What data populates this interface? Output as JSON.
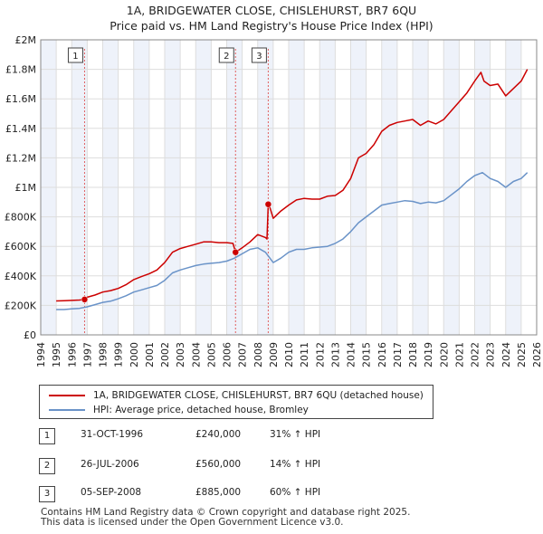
{
  "title_line1": "1A, BRIDGEWATER CLOSE, CHISLEHURST, BR7 6QU",
  "title_line2": "Price paid vs. HM Land Registry's House Price Index (HPI)",
  "colors": {
    "property": "#cc0000",
    "hpi": "#6a93c8",
    "grid": "#dddddd",
    "band": "#eef2fa",
    "marker_line": "#e06060"
  },
  "chart_data": {
    "type": "line",
    "title": "Price paid vs. HM Land Registry's House Price Index (HPI)",
    "xlim": [
      1994,
      2026
    ],
    "ylim": [
      0,
      2000000
    ],
    "x_ticks": [
      "1994",
      "1995",
      "1996",
      "1997",
      "1998",
      "1999",
      "2000",
      "2001",
      "2002",
      "2003",
      "2004",
      "2005",
      "2006",
      "2007",
      "2008",
      "2009",
      "2010",
      "2011",
      "2012",
      "2013",
      "2014",
      "2015",
      "2016",
      "2017",
      "2018",
      "2019",
      "2020",
      "2021",
      "2022",
      "2023",
      "2024",
      "2025",
      "2026"
    ],
    "y_ticks": [
      {
        "value": 0,
        "label": "£0"
      },
      {
        "value": 200000,
        "label": "£200K"
      },
      {
        "value": 400000,
        "label": "£400K"
      },
      {
        "value": 600000,
        "label": "£600K"
      },
      {
        "value": 800000,
        "label": "£800K"
      },
      {
        "value": 1000000,
        "label": "£1M"
      },
      {
        "value": 1200000,
        "label": "£1.2M"
      },
      {
        "value": 1400000,
        "label": "£1.4M"
      },
      {
        "value": 1600000,
        "label": "£1.6M"
      },
      {
        "value": 1800000,
        "label": "£1.8M"
      },
      {
        "value": 2000000,
        "label": "£2M"
      }
    ],
    "series": [
      {
        "name": "1A, BRIDGEWATER CLOSE, CHISLEHURST, BR7 6QU (detached house)",
        "x": [
          1995.0,
          1995.5,
          1996.0,
          1996.5,
          1996.83,
          1997.0,
          1997.5,
          1998.0,
          1998.5,
          1999.0,
          1999.5,
          2000.0,
          2000.5,
          2001.0,
          2001.5,
          2002.0,
          2002.5,
          2003.0,
          2003.5,
          2004.0,
          2004.5,
          2005.0,
          2005.5,
          2006.0,
          2006.4,
          2006.57,
          2007.0,
          2007.5,
          2008.0,
          2008.5,
          2008.6,
          2008.68,
          2008.8,
          2009.0,
          2009.5,
          2010.0,
          2010.5,
          2011.0,
          2011.5,
          2012.0,
          2012.5,
          2013.0,
          2013.5,
          2014.0,
          2014.5,
          2015.0,
          2015.5,
          2016.0,
          2016.5,
          2017.0,
          2017.5,
          2018.0,
          2018.5,
          2019.0,
          2019.5,
          2020.0,
          2020.5,
          2021.0,
          2021.5,
          2022.0,
          2022.4,
          2022.6,
          2023.0,
          2023.5,
          2024.0,
          2024.5,
          2025.0,
          2025.4
        ],
        "values": [
          230000,
          232000,
          234000,
          236000,
          240000,
          255000,
          270000,
          290000,
          300000,
          315000,
          340000,
          375000,
          395000,
          415000,
          440000,
          490000,
          560000,
          585000,
          600000,
          615000,
          630000,
          630000,
          625000,
          625000,
          620000,
          560000,
          590000,
          630000,
          680000,
          660000,
          650000,
          885000,
          860000,
          790000,
          840000,
          880000,
          915000,
          925000,
          920000,
          920000,
          940000,
          945000,
          980000,
          1060000,
          1200000,
          1230000,
          1290000,
          1380000,
          1420000,
          1440000,
          1450000,
          1460000,
          1420000,
          1450000,
          1430000,
          1460000,
          1520000,
          1580000,
          1640000,
          1720000,
          1780000,
          1720000,
          1690000,
          1700000,
          1620000,
          1670000,
          1720000,
          1800000
        ]
      },
      {
        "name": "HPI: Average price, detached house, Bromley",
        "x": [
          1995.0,
          1995.5,
          1996.0,
          1996.5,
          1997.0,
          1997.5,
          1998.0,
          1998.5,
          1999.0,
          1999.5,
          2000.0,
          2000.5,
          2001.0,
          2001.5,
          2002.0,
          2002.5,
          2003.0,
          2003.5,
          2004.0,
          2004.5,
          2005.0,
          2005.5,
          2006.0,
          2006.5,
          2007.0,
          2007.5,
          2008.0,
          2008.5,
          2009.0,
          2009.5,
          2010.0,
          2010.5,
          2011.0,
          2011.5,
          2012.0,
          2012.5,
          2013.0,
          2013.5,
          2014.0,
          2014.5,
          2015.0,
          2015.5,
          2016.0,
          2016.5,
          2017.0,
          2017.5,
          2018.0,
          2018.5,
          2019.0,
          2019.5,
          2020.0,
          2020.5,
          2021.0,
          2021.5,
          2022.0,
          2022.5,
          2023.0,
          2023.5,
          2024.0,
          2024.5,
          2025.0,
          2025.4
        ],
        "values": [
          172000,
          172000,
          176000,
          180000,
          190000,
          205000,
          220000,
          228000,
          245000,
          265000,
          290000,
          305000,
          320000,
          335000,
          370000,
          420000,
          440000,
          455000,
          470000,
          480000,
          485000,
          490000,
          500000,
          520000,
          550000,
          580000,
          590000,
          560000,
          490000,
          520000,
          560000,
          580000,
          580000,
          590000,
          595000,
          600000,
          620000,
          650000,
          700000,
          760000,
          800000,
          840000,
          880000,
          890000,
          900000,
          910000,
          905000,
          890000,
          900000,
          895000,
          910000,
          950000,
          990000,
          1040000,
          1080000,
          1100000,
          1060000,
          1040000,
          1000000,
          1040000,
          1060000,
          1100000
        ]
      }
    ],
    "sales": [
      {
        "label": "1",
        "x": 1996.83,
        "value": 240000
      },
      {
        "label": "2",
        "x": 2006.57,
        "value": 560000
      },
      {
        "label": "3",
        "x": 2008.68,
        "value": 885000
      }
    ]
  },
  "legend": {
    "property_label": "1A, BRIDGEWATER CLOSE, CHISLEHURST, BR7 6QU (detached house)",
    "hpi_label": "HPI: Average price, detached house, Bromley"
  },
  "sales_table": [
    {
      "num": "1",
      "date": "31-OCT-1996",
      "price": "£240,000",
      "pct": "31% ↑ HPI"
    },
    {
      "num": "2",
      "date": "26-JUL-2006",
      "price": "£560,000",
      "pct": "14% ↑ HPI"
    },
    {
      "num": "3",
      "date": "05-SEP-2008",
      "price": "£885,000",
      "pct": "60% ↑ HPI"
    }
  ],
  "footer": {
    "line1": "Contains HM Land Registry data © Crown copyright and database right 2025.",
    "line2": "This data is licensed under the Open Government Licence v3.0."
  }
}
